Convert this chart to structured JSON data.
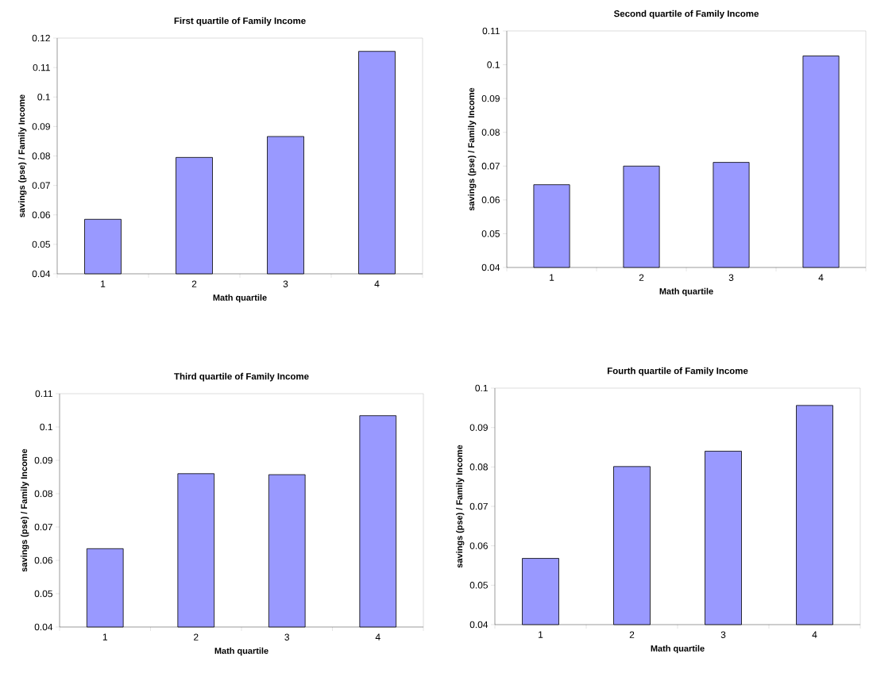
{
  "chart_data": [
    {
      "type": "bar",
      "title": "First quartile of Family Income",
      "xlabel": "Math quartile",
      "ylabel": "savings (pse) / Family Income",
      "categories": [
        "1",
        "2",
        "3",
        "4"
      ],
      "values": [
        0.0585,
        0.0795,
        0.0866,
        0.1155
      ],
      "color": "#9999ff",
      "ylim": [
        0.04,
        0.12
      ],
      "yticks": [
        0.04,
        0.05,
        0.06,
        0.07,
        0.08,
        0.09,
        0.1,
        0.11,
        0.12
      ]
    },
    {
      "type": "bar",
      "title": "Second quartile of Family Income",
      "xlabel": "Math quartile",
      "ylabel": "savings (pse) / Family Income",
      "categories": [
        "1",
        "2",
        "3",
        "4"
      ],
      "values": [
        0.0645,
        0.07,
        0.0711,
        0.1026
      ],
      "color": "#9999ff",
      "ylim": [
        0.04,
        0.11
      ],
      "yticks": [
        0.04,
        0.05,
        0.06,
        0.07,
        0.08,
        0.09,
        0.1,
        0.11
      ]
    },
    {
      "type": "bar",
      "title": "Third quartile of Family Income",
      "xlabel": "Math quartile",
      "ylabel": "savings (pse) / Family Income",
      "categories": [
        "1",
        "2",
        "3",
        "4"
      ],
      "values": [
        0.0635,
        0.086,
        0.0857,
        0.1034
      ],
      "color": "#9999ff",
      "ylim": [
        0.04,
        0.11
      ],
      "yticks": [
        0.04,
        0.05,
        0.06,
        0.07,
        0.08,
        0.09,
        0.1,
        0.11
      ]
    },
    {
      "type": "bar",
      "title": "Fourth quartile of Family Income",
      "xlabel": "Math quartile",
      "ylabel": "savings (pse) / Family Income",
      "categories": [
        "1",
        "2",
        "3",
        "4"
      ],
      "values": [
        0.0568,
        0.0801,
        0.084,
        0.0956
      ],
      "color": "#9999ff",
      "ylim": [
        0.04,
        0.1
      ],
      "yticks": [
        0.04,
        0.05,
        0.06,
        0.07,
        0.08,
        0.09,
        0.1
      ]
    }
  ]
}
